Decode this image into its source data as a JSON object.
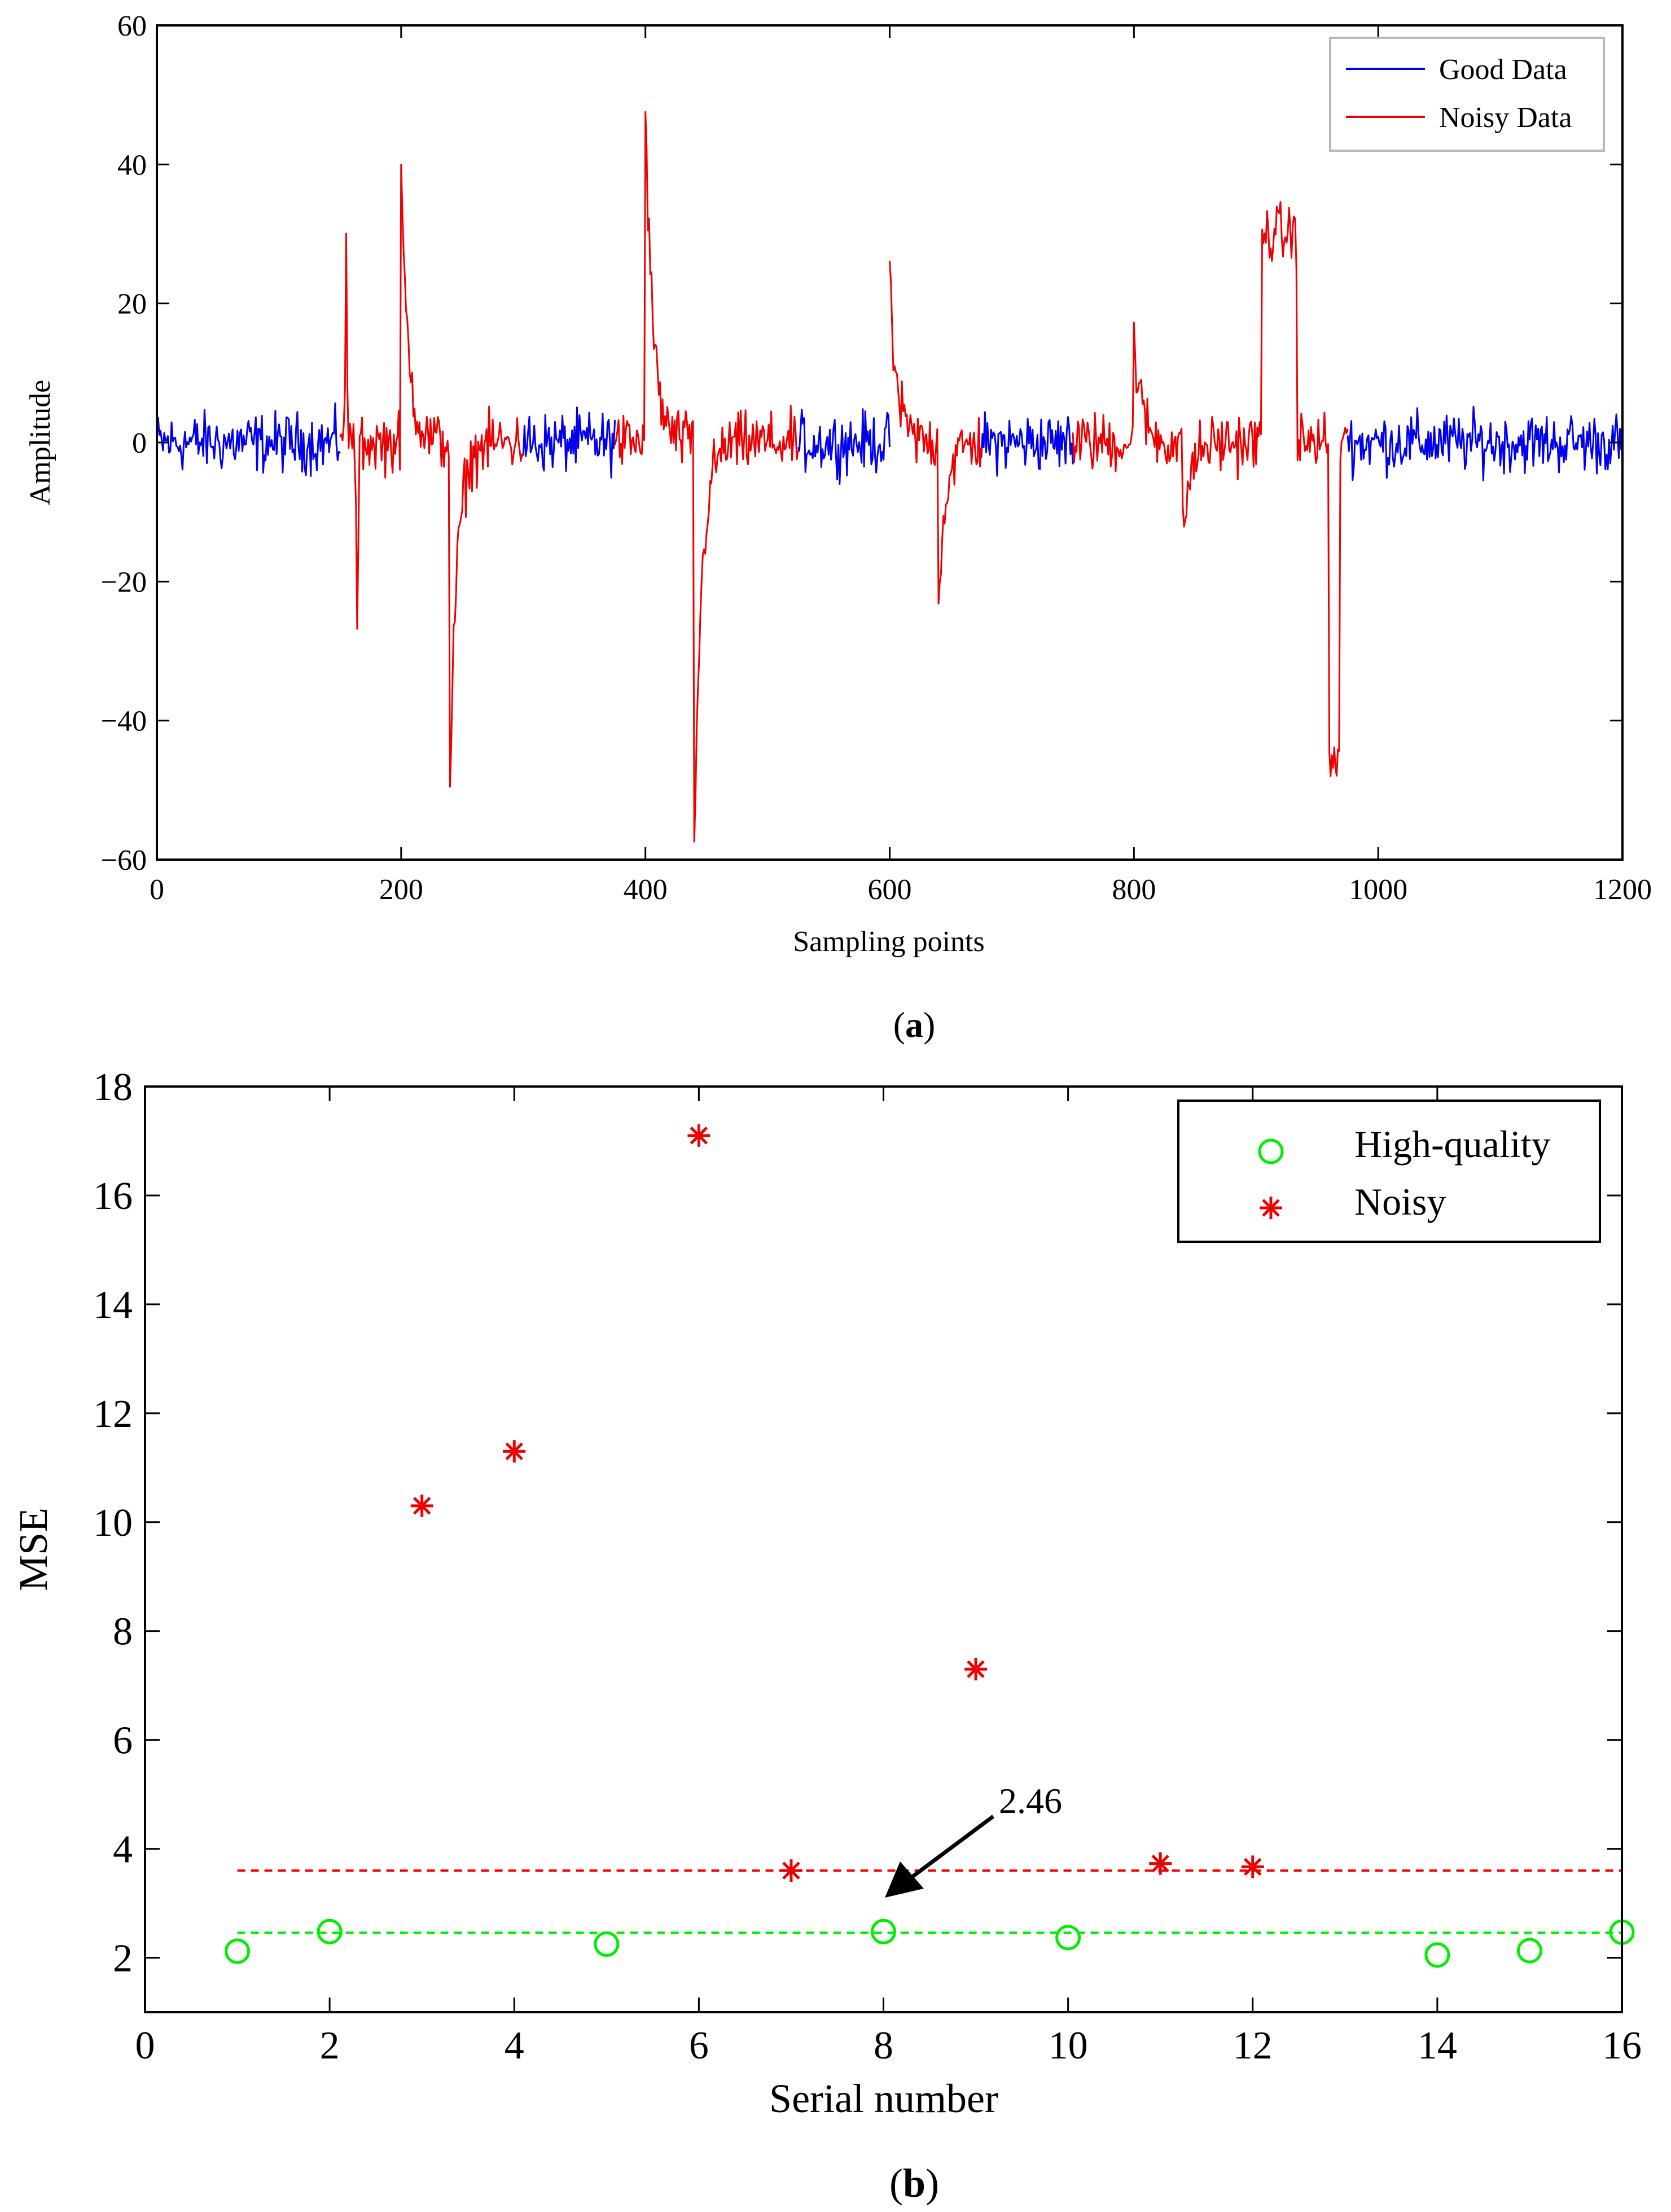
{
  "chart_data": [
    {
      "id": "a",
      "type": "line",
      "title": "",
      "caption_open": "(",
      "caption_letter": "a",
      "caption_close": ")",
      "xlabel": "Sampling points",
      "ylabel": "Amplitude",
      "xlim": [
        0,
        1200
      ],
      "ylim": [
        -60,
        60
      ],
      "grid": false,
      "x_ticks": [
        0,
        200,
        400,
        600,
        800,
        1000,
        1200
      ],
      "x_tick_labels": [
        "0",
        "200",
        "400",
        "600",
        "800",
        "1000",
        "1200"
      ],
      "y_ticks": [
        -60,
        -40,
        -20,
        0,
        20,
        40,
        60
      ],
      "y_tick_labels": [
        "−60",
        "−40",
        "−20",
        "0",
        "20",
        "40",
        "60"
      ],
      "legend_position": "top-right",
      "series": [
        {
          "name": "Good Data",
          "color": "#0000ee",
          "segments": [
            [
              0,
              150
            ],
            [
              300,
              375
            ],
            [
              525,
              600
            ],
            [
              675,
              750
            ],
            [
              975,
              1200
            ]
          ]
        },
        {
          "name": "Noisy Data",
          "color": "#ee0000",
          "segments": [
            [
              150,
              300
            ],
            [
              375,
              525
            ],
            [
              600,
              675
            ],
            [
              750,
              975
            ]
          ]
        }
      ],
      "noisy_events": [
        {
          "x": 155,
          "shape": "spike",
          "value": 28.5
        },
        {
          "x": 164,
          "shape": "spike",
          "value": -31.5
        },
        {
          "x": 200,
          "shape": "decay",
          "value": 37
        },
        {
          "x": 240,
          "shape": "decay",
          "value": -49
        },
        {
          "x": 400,
          "shape": "decay",
          "value": 48
        },
        {
          "x": 440,
          "shape": "decay",
          "value": -58
        },
        {
          "x": 600,
          "shape": "decay",
          "value": 22
        },
        {
          "x": 640,
          "shape": "decay",
          "value": -22
        },
        {
          "x": 800,
          "shape": "decay",
          "value": 15.5
        },
        {
          "x": 840,
          "shape": "decay",
          "value": -13.5
        },
        {
          "x": 905,
          "shape": "plateau",
          "value": 30,
          "end": 933
        },
        {
          "x": 960,
          "shape": "plateau",
          "value": -46,
          "end": 968
        }
      ]
    },
    {
      "id": "b",
      "type": "scatter",
      "title": "",
      "caption_open": "(",
      "caption_letter": "b",
      "caption_close": ")",
      "xlabel": "Serial number",
      "ylabel": "MSE",
      "xlim": [
        0,
        16
      ],
      "ylim": [
        1,
        18
      ],
      "grid": false,
      "x_ticks": [
        0,
        2,
        4,
        6,
        8,
        10,
        12,
        14,
        16
      ],
      "x_tick_labels": [
        "0",
        "2",
        "4",
        "6",
        "8",
        "10",
        "12",
        "14",
        "16"
      ],
      "y_ticks": [
        2,
        4,
        6,
        8,
        10,
        12,
        14,
        16,
        18
      ],
      "y_tick_labels": [
        "2",
        "4",
        "6",
        "8",
        "10",
        "12",
        "14",
        "16",
        "18"
      ],
      "legend_position": "top-right",
      "series": [
        {
          "name": "High-quality",
          "marker": "circle",
          "color": "#00ee00",
          "x": [
            1,
            2,
            5,
            8,
            10,
            14,
            15,
            16
          ],
          "y": [
            2.12,
            2.48,
            2.25,
            2.48,
            2.37,
            2.05,
            2.13,
            2.47
          ]
        },
        {
          "name": "Noisy",
          "marker": "asterisk",
          "color": "#ee0000",
          "x": [
            3,
            4,
            6,
            7,
            9,
            11,
            12
          ],
          "y": [
            10.3,
            11.3,
            17.1,
            3.6,
            7.3,
            3.73,
            3.67
          ]
        }
      ],
      "threshold_lines": [
        {
          "name": "noisy-mean",
          "y": 3.6,
          "x_from": 1,
          "x_to": 16,
          "color": "#ee0000"
        },
        {
          "name": "high-quality-mean",
          "y": 2.46,
          "x_from": 1,
          "x_to": 16,
          "color": "#00ee00"
        }
      ],
      "annotation": {
        "text": "2.46",
        "point_x": 8,
        "point_y": 2.5
      }
    }
  ]
}
